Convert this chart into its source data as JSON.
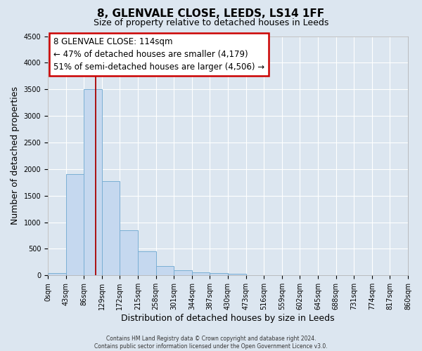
{
  "title": "8, GLENVALE CLOSE, LEEDS, LS14 1FF",
  "subtitle": "Size of property relative to detached houses in Leeds",
  "xlabel": "Distribution of detached houses by size in Leeds",
  "ylabel": "Number of detached properties",
  "bin_edges": [
    0,
    43,
    86,
    129,
    172,
    215,
    258,
    301,
    344,
    387,
    430,
    473,
    516,
    559,
    602,
    645,
    688,
    731,
    774,
    817,
    860
  ],
  "bin_labels": [
    "0sqm",
    "43sqm",
    "86sqm",
    "129sqm",
    "172sqm",
    "215sqm",
    "258sqm",
    "301sqm",
    "344sqm",
    "387sqm",
    "430sqm",
    "473sqm",
    "516sqm",
    "559sqm",
    "602sqm",
    "645sqm",
    "688sqm",
    "731sqm",
    "774sqm",
    "817sqm",
    "860sqm"
  ],
  "bar_values": [
    50,
    1900,
    3500,
    1775,
    850,
    450,
    175,
    100,
    60,
    40,
    30,
    0,
    0,
    0,
    0,
    0,
    0,
    0,
    0,
    0
  ],
  "bar_color": "#c5d8ef",
  "bar_edge_color": "#7aafd4",
  "vline_x": 114,
  "vline_color": "#aa0000",
  "ylim": [
    0,
    4500
  ],
  "yticks": [
    0,
    500,
    1000,
    1500,
    2000,
    2500,
    3000,
    3500,
    4000,
    4500
  ],
  "annotation_text_line1": "8 GLENVALE CLOSE: 114sqm",
  "annotation_text_line2": "← 47% of detached houses are smaller (4,179)",
  "annotation_text_line3": "51% of semi-detached houses are larger (4,506) →",
  "annotation_box_color": "#ffffff",
  "annotation_border_color": "#cc0000",
  "footer_line1": "Contains HM Land Registry data © Crown copyright and database right 2024.",
  "footer_line2": "Contains public sector information licensed under the Open Government Licence v3.0.",
  "bg_color": "#dce6f0",
  "plot_bg_color": "#dce6f0",
  "grid_color": "#ffffff",
  "title_fontsize": 11,
  "subtitle_fontsize": 9,
  "tick_fontsize": 7,
  "xlabel_fontsize": 9,
  "ylabel_fontsize": 9
}
